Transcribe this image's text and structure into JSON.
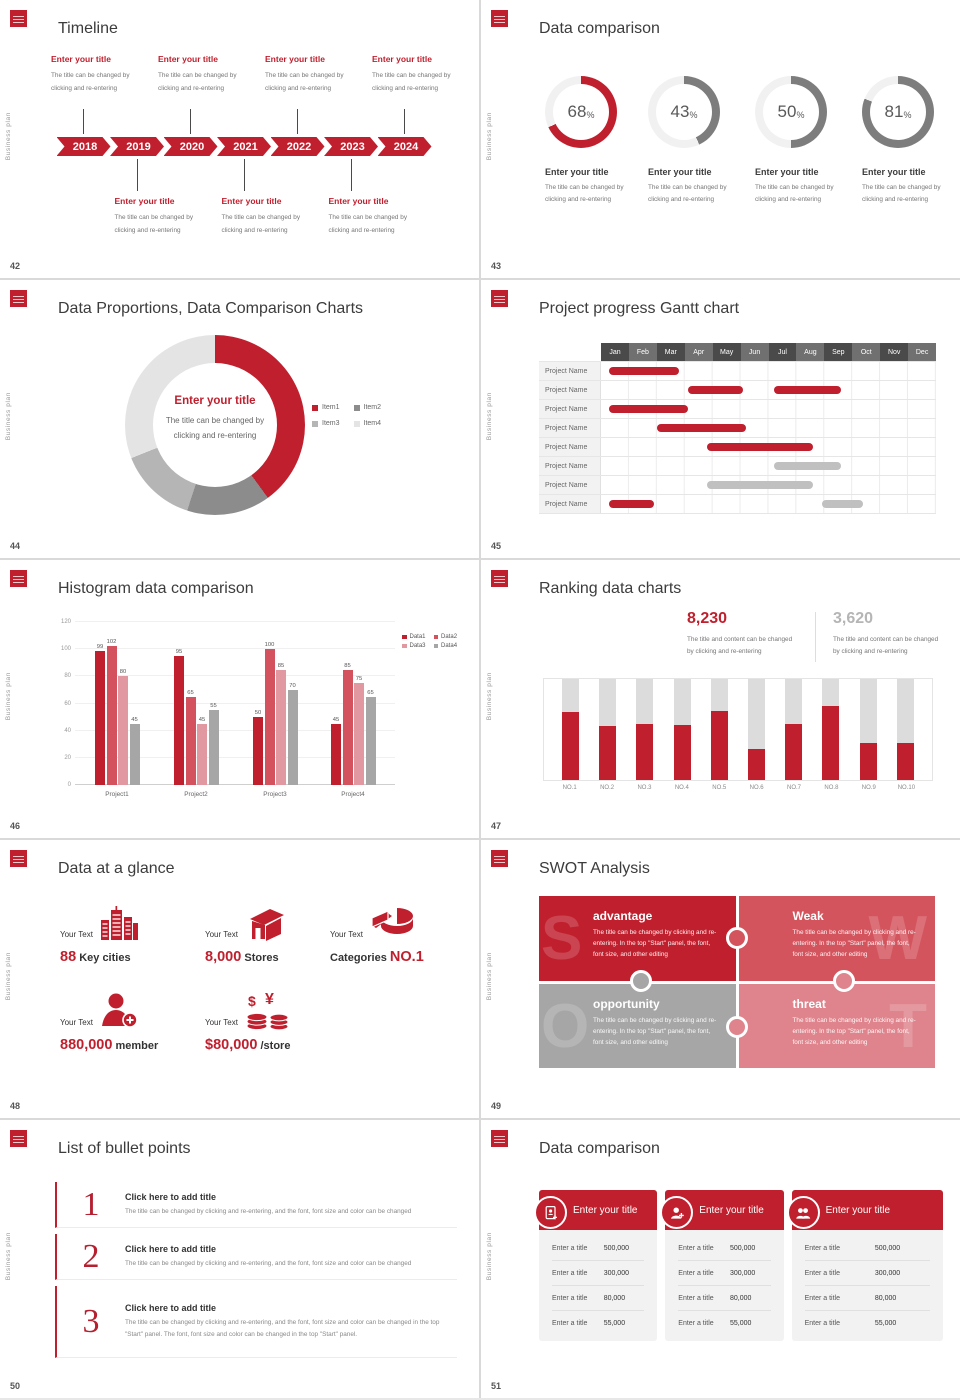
{
  "chrome": {
    "sidebar_label": "Business plan",
    "accent": "#c0202e"
  },
  "common": {
    "entry_title": "Enter your title",
    "body1": "The title can be changed by",
    "body2": "clicking and re-entering"
  },
  "slides": {
    "timeline": {
      "page": "42",
      "title": "Timeline",
      "years": [
        "2018",
        "2019",
        "2020",
        "2021",
        "2022",
        "2023",
        "2024"
      ],
      "top_indices": [
        0,
        2,
        4,
        6
      ],
      "bottom_indices": [
        1,
        3,
        5
      ]
    },
    "donuts": {
      "page": "43",
      "title": "Data comparison",
      "chart_data": {
        "type": "donut-progress",
        "values": [
          68,
          43,
          50,
          81
        ],
        "unit": "%",
        "highlight_index": 0,
        "highlight_color": "#c0202e",
        "default_color": "#7d7d7d",
        "track_color": "#f1f1f1"
      }
    },
    "proportions": {
      "page": "44",
      "title": "Data Proportions, Data Comparison Charts",
      "chart_data": {
        "type": "donut",
        "legend": [
          "Item1",
          "Item2",
          "Item3",
          "Item4"
        ],
        "values": [
          40,
          15,
          14,
          31
        ],
        "colors": [
          "#c0202e",
          "#8c8c8c",
          "#b5b5b5",
          "#e4e4e4"
        ],
        "legend_position": "right"
      }
    },
    "gantt": {
      "page": "45",
      "title": "Project progress Gantt chart",
      "months": [
        "Jan",
        "Feb",
        "Mar",
        "Apr",
        "May",
        "Jun",
        "Jul",
        "Aug",
        "Sep",
        "Oct",
        "Nov",
        "Dec"
      ],
      "chart_data": {
        "type": "gantt",
        "months_span": 12,
        "bar_colors": {
          "red": "#c0202e",
          "gray": "#c0c0c0"
        },
        "rows": [
          {
            "label": "Project Name",
            "bars": [
              {
                "start": 0.3,
                "end": 2.8,
                "color": "red"
              }
            ]
          },
          {
            "label": "Project Name",
            "bars": [
              {
                "start": 3.1,
                "end": 5.1,
                "color": "red"
              },
              {
                "start": 6.2,
                "end": 8.6,
                "color": "red"
              }
            ]
          },
          {
            "label": "Project Name",
            "bars": [
              {
                "start": 0.3,
                "end": 3.1,
                "color": "red"
              }
            ]
          },
          {
            "label": "Project Name",
            "bars": [
              {
                "start": 2.0,
                "end": 5.2,
                "color": "red"
              }
            ]
          },
          {
            "label": "Project Name",
            "bars": [
              {
                "start": 3.8,
                "end": 7.6,
                "color": "red"
              }
            ]
          },
          {
            "label": "Project Name",
            "bars": [
              {
                "start": 6.2,
                "end": 8.6,
                "color": "gray"
              }
            ]
          },
          {
            "label": "Project Name",
            "bars": [
              {
                "start": 3.8,
                "end": 7.6,
                "color": "gray"
              }
            ]
          },
          {
            "label": "Project Name",
            "bars": [
              {
                "start": 0.3,
                "end": 1.9,
                "color": "red"
              },
              {
                "start": 7.9,
                "end": 9.4,
                "color": "gray"
              }
            ]
          }
        ]
      }
    },
    "histogram": {
      "page": "46",
      "title": "Histogram data comparison",
      "chart_data": {
        "type": "bar",
        "categories": [
          "Project1",
          "Project2",
          "Project3",
          "Project4"
        ],
        "series": [
          {
            "name": "Data1",
            "color": "#c0202e",
            "values": [
              99,
              95,
              50,
              45
            ]
          },
          {
            "name": "Data2",
            "color": "#d4525e",
            "values": [
              102,
              65,
              100,
              85
            ]
          },
          {
            "name": "Data3",
            "color": "#e298a0",
            "values": [
              80,
              45,
              85,
              75
            ]
          },
          {
            "name": "Data4",
            "color": "#a6a6a6",
            "values": [
              45,
              55,
              70,
              65
            ]
          }
        ],
        "ylim": [
          0,
          120
        ],
        "yticks": [
          0,
          20,
          40,
          60,
          80,
          100,
          120
        ],
        "legend_position": "top-right"
      }
    },
    "ranking": {
      "page": "47",
      "title": "Ranking data charts",
      "stat1": {
        "value": "8,230",
        "body1": "The title and content can be changed",
        "body2": "by clicking and re-entering"
      },
      "stat2": {
        "value": "3,620",
        "body1": "The title and content can be changed",
        "body2": "by clicking and re-entering"
      },
      "chart_data": {
        "type": "bar",
        "categories": [
          "NO.1",
          "NO.2",
          "NO.3",
          "NO.4",
          "NO.5",
          "NO.6",
          "NO.7",
          "NO.8",
          "NO.9",
          "NO.10"
        ],
        "values": [
          67,
          53,
          55,
          54,
          68,
          31,
          55,
          73,
          37,
          37
        ],
        "ylim": [
          0,
          100
        ],
        "bar_color": "#c0202e",
        "track_color": "#dcdcdc"
      }
    },
    "glance": {
      "page": "48",
      "title": "Data at a glance",
      "items": [
        {
          "label": "Your Text",
          "value": "88",
          "text": "Key cities",
          "icon": "city-icon"
        },
        {
          "label": "Your Text",
          "value": "8,000",
          "text": "Stores",
          "icon": "store-icon"
        },
        {
          "label": "Your Text",
          "value": "NO.1",
          "text": "Categories",
          "icon": "pie-icon"
        },
        {
          "label": "Your Text",
          "value": "880,000",
          "text": "member",
          "icon": "member-icon"
        },
        {
          "label": "Your Text",
          "value": "$80,000",
          "text": "/store",
          "icon": "coins-icon"
        }
      ]
    },
    "swot": {
      "page": "49",
      "title": "SWOT Analysis",
      "body": "The title can be changed by clicking and re-entering. In the top \"Start\" panel, the font, font size, and other editing",
      "quads": [
        {
          "letter": "S",
          "title": "advantage",
          "color": "#c0202e"
        },
        {
          "letter": "W",
          "title": "Weak",
          "color": "#d4545e"
        },
        {
          "letter": "O",
          "title": "opportunity",
          "color": "#a6a6a6"
        },
        {
          "letter": "T",
          "title": "threat",
          "color": "#df848c"
        }
      ]
    },
    "bullets": {
      "page": "50",
      "title": "List of bullet points",
      "items": [
        {
          "num": "1",
          "title": "Click here to add title",
          "body": "The title can be changed by clicking and re-entering, and the font, font size and color can be changed"
        },
        {
          "num": "2",
          "title": "Click here to add title",
          "body": "The title can be changed by clicking and re-entering, and the font, font size and color can be changed"
        },
        {
          "num": "3",
          "title": "Click here to add title",
          "body": "The title can be changed by clicking and re-entering, and the font, font size and color can be changed in the top \"Start\" panel. The font, font size and color can be changed in the top \"Start\" panel."
        }
      ]
    },
    "tables": {
      "page": "51",
      "title": "Data comparison",
      "header": "Enter your title",
      "row_label": "Enter a title",
      "values": [
        "500,000",
        "300,000",
        "80,000",
        "55,000"
      ],
      "cards": [
        {
          "icon": "tablet-user-icon"
        },
        {
          "icon": "user-plus-icon"
        },
        {
          "icon": "users-icon"
        }
      ]
    }
  }
}
